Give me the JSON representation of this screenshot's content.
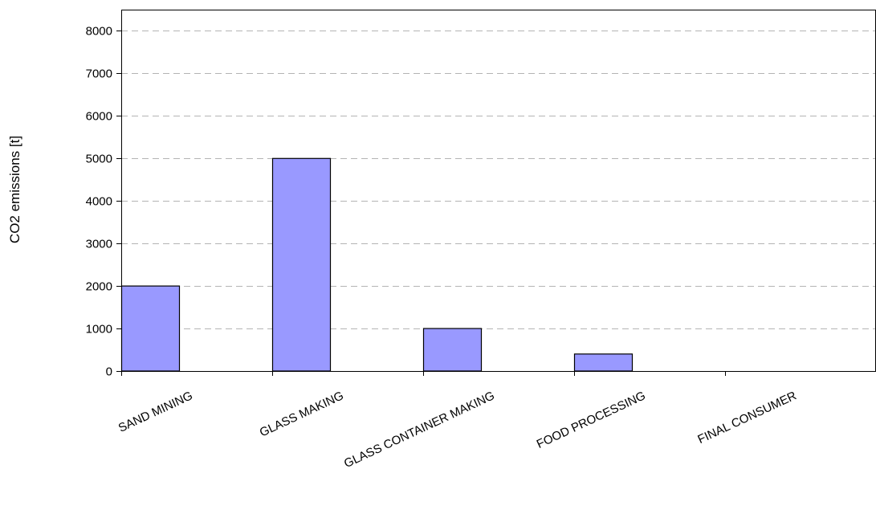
{
  "chart_data": {
    "type": "bar",
    "title": "",
    "xlabel": "",
    "ylabel": "CO2 emissions [t]",
    "categories": [
      "SAND MINING",
      "GLASS MAKING",
      "GLASS CONTAINER MAKING",
      "FOOD PROCESSING",
      "FINAL CONSUMER"
    ],
    "values": [
      2000,
      5000,
      1000,
      400,
      0
    ],
    "ylim": [
      0,
      8500
    ],
    "yticks": [
      0,
      1000,
      2000,
      3000,
      4000,
      5000,
      6000,
      7000,
      8000
    ],
    "grid": "horizontal dashed",
    "legend": "none",
    "colors": {
      "bar_fill": "#9999ff",
      "bar_stroke": "#000000",
      "grid": "#b4b4b4",
      "axis": "#000000"
    }
  }
}
